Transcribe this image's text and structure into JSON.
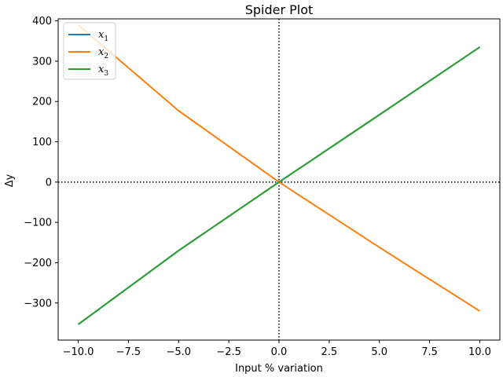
{
  "chart_data": {
    "type": "line",
    "title": "Spider Plot",
    "xlabel": "Input % variation",
    "ylabel": "Δy",
    "xlim": [
      -11,
      11
    ],
    "ylim": [
      -392,
      405
    ],
    "xticks": [
      -10,
      -7.5,
      -5,
      -2.5,
      0,
      2.5,
      5,
      7.5,
      10
    ],
    "xtick_labels": [
      "−10.0",
      "−7.5",
      "−5.0",
      "−2.5",
      "0.0",
      "2.5",
      "5.0",
      "7.5",
      "10.0"
    ],
    "yticks": [
      -300,
      -200,
      -100,
      0,
      100,
      200,
      300,
      400
    ],
    "ytick_labels": [
      "−300",
      "−200",
      "−100",
      "0",
      "100",
      "200",
      "300",
      "400"
    ],
    "grid": false,
    "reference_lines": {
      "x": 0,
      "y": 0,
      "style": "dotted",
      "color": "#000000"
    },
    "legend_position": "top-left",
    "x": [
      -10,
      -5,
      0,
      5,
      10
    ],
    "series": [
      {
        "name": "x₁",
        "base": "x",
        "sub": "1",
        "color": "#1f77b4",
        "values": [
          -353,
          -170,
          0,
          167,
          335
        ]
      },
      {
        "name": "x₂",
        "base": "x",
        "sub": "2",
        "color": "#ff7f0e",
        "values": [
          390,
          177,
          0,
          -162,
          -320
        ]
      },
      {
        "name": "x₃",
        "base": "x",
        "sub": "3",
        "color": "#2ca02c",
        "values": [
          -353,
          -170,
          0,
          167,
          335
        ]
      }
    ]
  }
}
